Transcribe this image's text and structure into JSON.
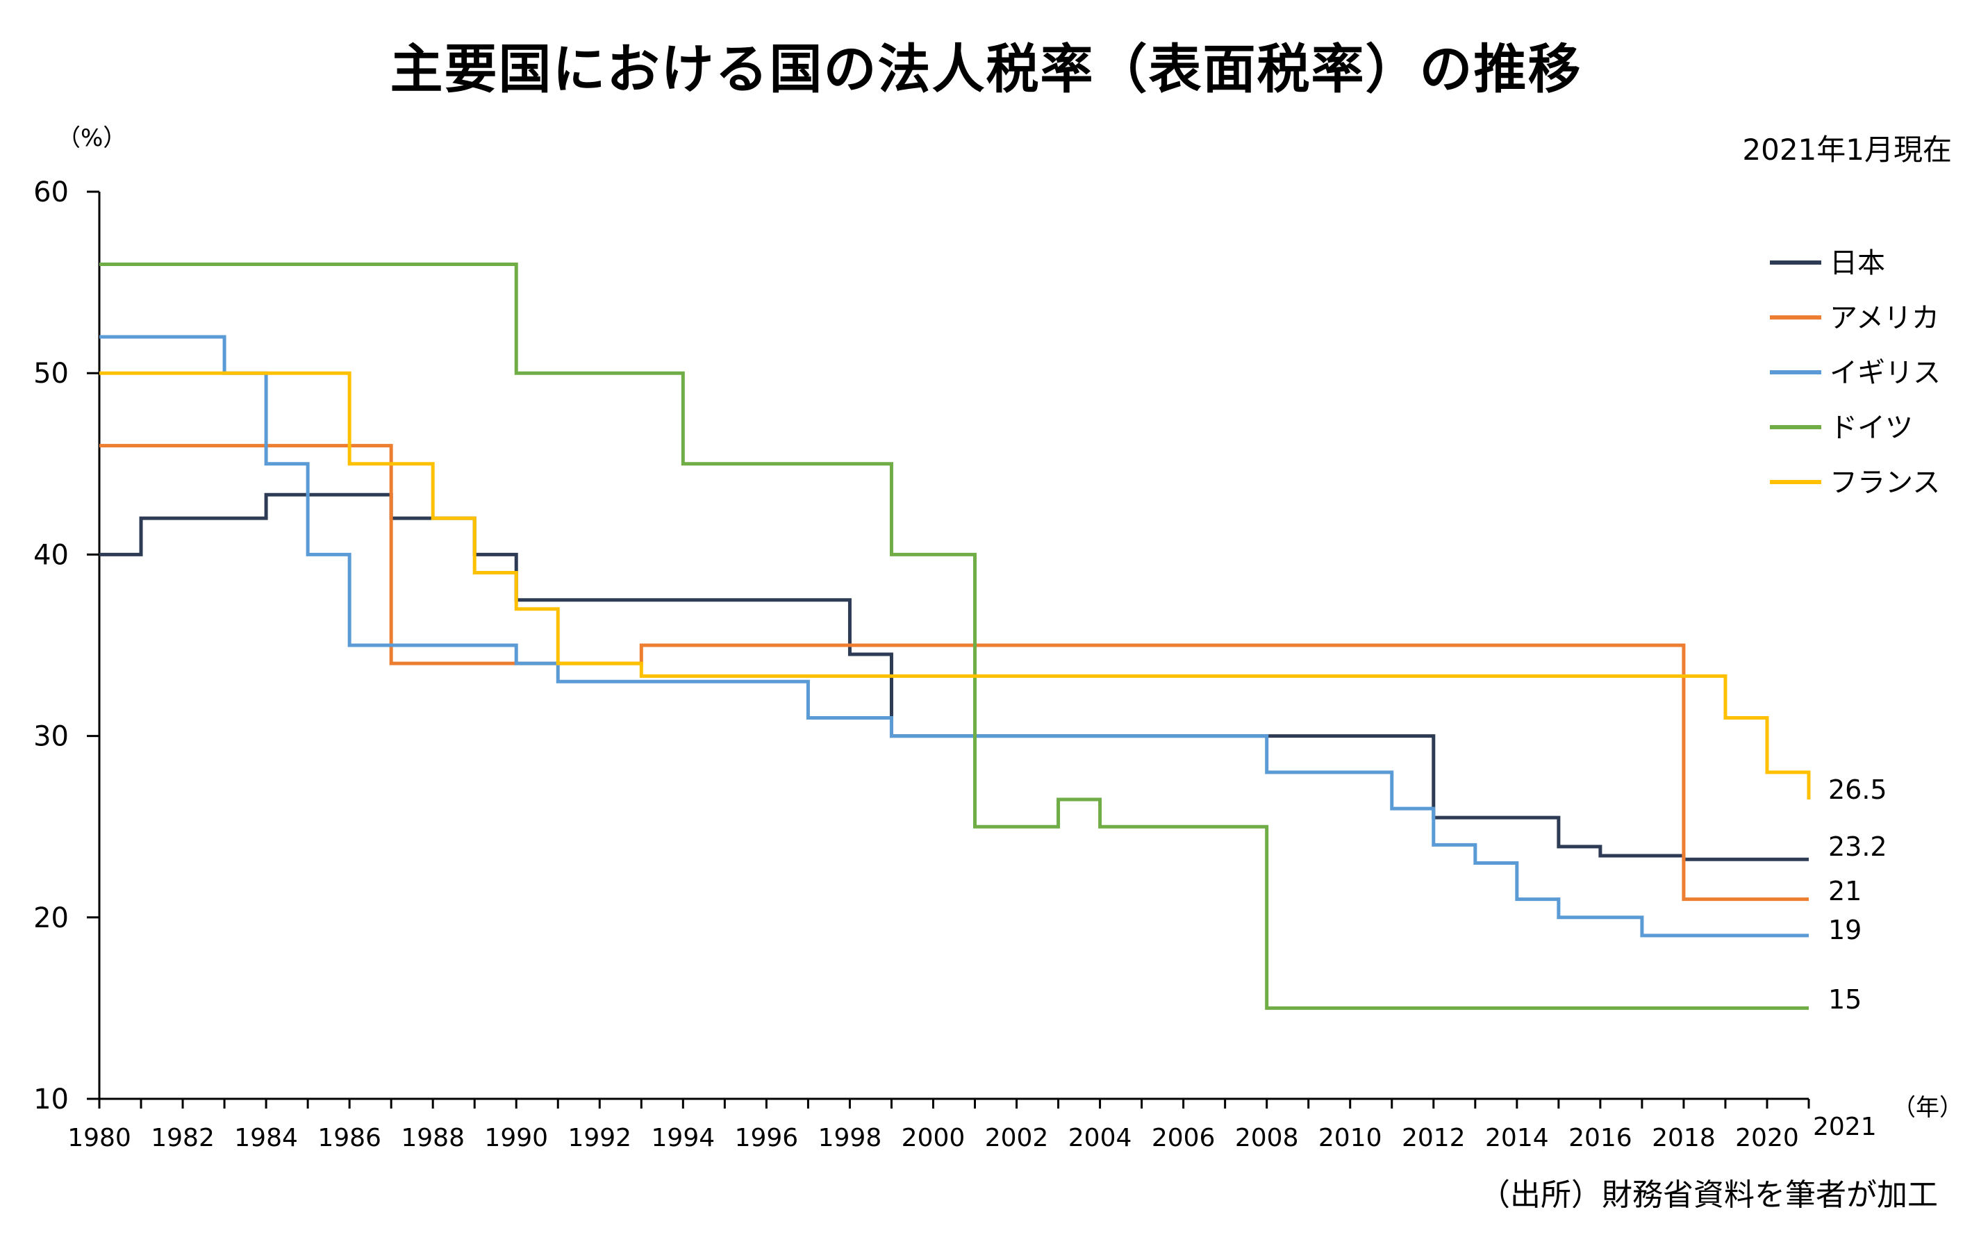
{
  "chart_data": {
    "type": "line",
    "step": true,
    "title": "主要国における国の法人税率（表面税率）の推移",
    "subtitle": "2021年1月現在",
    "ylabel": "（%）",
    "xlabel": "（年）",
    "source": "（出所）財務省資料を筆者が加工",
    "xlim": [
      1980,
      2021
    ],
    "ylim": [
      10,
      60
    ],
    "yticks": [
      "10",
      "20",
      "30",
      "40",
      "50",
      "60"
    ],
    "xtick_labels": [
      "1980",
      "1982",
      "1984",
      "1986",
      "1988",
      "1990",
      "1992",
      "1994",
      "1996",
      "1998",
      "2000",
      "2002",
      "2004",
      "2006",
      "2008",
      "2010",
      "2012",
      "2014",
      "2016",
      "2018",
      "2020",
      "2021"
    ],
    "legend_position": "right",
    "grid": false,
    "series": [
      {
        "name": "日本",
        "color": "#2e3b55",
        "end_label": "23.2",
        "points": [
          [
            1980,
            40
          ],
          [
            1981,
            42
          ],
          [
            1984,
            43.3
          ],
          [
            1987,
            42
          ],
          [
            1989,
            40
          ],
          [
            1990,
            37.5
          ],
          [
            1998,
            34.5
          ],
          [
            1999,
            30
          ],
          [
            2012,
            25.5
          ],
          [
            2015,
            23.9
          ],
          [
            2016,
            23.4
          ],
          [
            2018,
            23.2
          ],
          [
            2021,
            23.2
          ]
        ]
      },
      {
        "name": "アメリカ",
        "color": "#ed7d31",
        "end_label": "21",
        "points": [
          [
            1980,
            46
          ],
          [
            1987,
            34
          ],
          [
            1993,
            35
          ],
          [
            2018,
            21
          ],
          [
            2021,
            21
          ]
        ]
      },
      {
        "name": "イギリス",
        "color": "#5b9bd5",
        "end_label": "19",
        "points": [
          [
            1980,
            52
          ],
          [
            1983,
            50
          ],
          [
            1984,
            45
          ],
          [
            1985,
            40
          ],
          [
            1986,
            35
          ],
          [
            1990,
            34
          ],
          [
            1991,
            33
          ],
          [
            1997,
            31
          ],
          [
            1999,
            30
          ],
          [
            2008,
            28
          ],
          [
            2011,
            26
          ],
          [
            2012,
            24
          ],
          [
            2013,
            23
          ],
          [
            2014,
            21
          ],
          [
            2015,
            20
          ],
          [
            2017,
            19
          ],
          [
            2021,
            19
          ]
        ]
      },
      {
        "name": "ドイツ",
        "color": "#70ad47",
        "end_label": "15",
        "points": [
          [
            1980,
            56
          ],
          [
            1990,
            50
          ],
          [
            1994,
            45
          ],
          [
            1999,
            40
          ],
          [
            2001,
            25
          ],
          [
            2003,
            26.5
          ],
          [
            2004,
            25
          ],
          [
            2008,
            15
          ],
          [
            2021,
            15
          ]
        ]
      },
      {
        "name": "フランス",
        "color": "#ffc000",
        "end_label": "26.5",
        "points": [
          [
            1980,
            50
          ],
          [
            1986,
            45
          ],
          [
            1988,
            42
          ],
          [
            1989,
            39
          ],
          [
            1990,
            37
          ],
          [
            1991,
            34
          ],
          [
            1993,
            33.3
          ],
          [
            2019,
            31
          ],
          [
            2020,
            28
          ],
          [
            2021,
            26.5
          ]
        ]
      }
    ]
  }
}
